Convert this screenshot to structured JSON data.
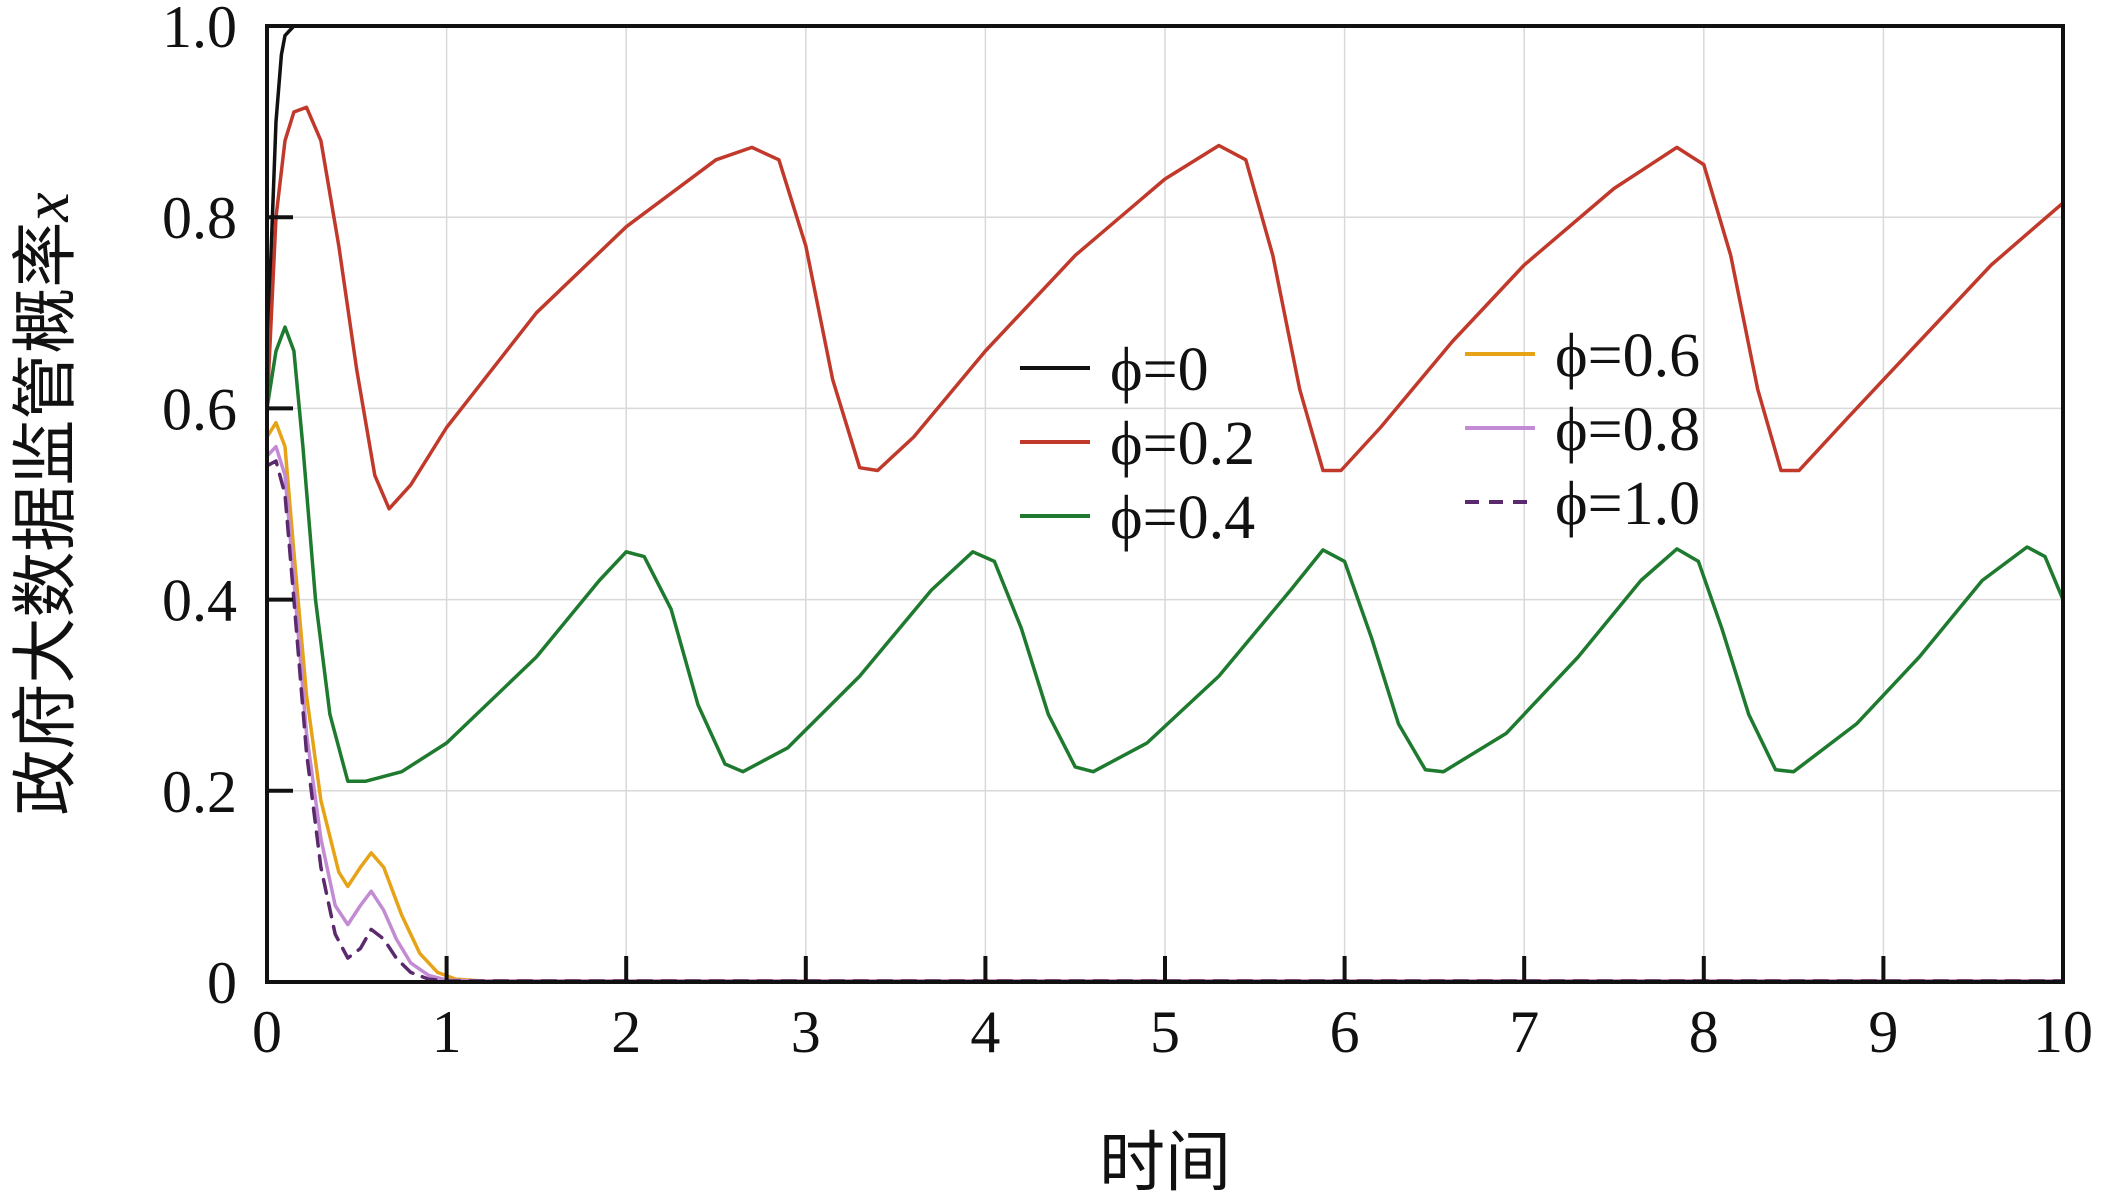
{
  "chart_data": {
    "type": "line",
    "xlabel": "时间",
    "ylabel": "政府大数据监管概率",
    "ylabel_var": "x",
    "xlim": [
      0,
      10
    ],
    "ylim": [
      0,
      1.0
    ],
    "x_ticks": [
      0,
      1,
      2,
      3,
      4,
      5,
      6,
      7,
      8,
      9,
      10
    ],
    "x_tick_labels": [
      "0",
      "1",
      "2",
      "3",
      "4",
      "5",
      "6",
      "7",
      "8",
      "9",
      "10"
    ],
    "y_ticks": [
      0,
      0.2,
      0.4,
      0.6,
      0.8,
      1.0
    ],
    "y_tick_labels": [
      "0",
      "0.2",
      "0.4",
      "0.6",
      "0.8",
      "1.0"
    ],
    "grid": true,
    "legend_placement": "center-right",
    "series": [
      {
        "name": "ϕ=0",
        "color": "#111111",
        "dash": "solid",
        "points": [
          [
            0,
            0.6
          ],
          [
            0.02,
            0.75
          ],
          [
            0.05,
            0.9
          ],
          [
            0.08,
            0.97
          ],
          [
            0.1,
            0.99
          ],
          [
            0.15,
            1.0
          ],
          [
            1.0,
            1.0
          ],
          [
            2,
            1.0
          ],
          [
            3,
            1.0
          ],
          [
            4,
            1.0
          ],
          [
            5,
            1.0
          ],
          [
            6,
            1.0
          ],
          [
            7,
            1.0
          ],
          [
            8,
            1.0
          ],
          [
            9,
            1.0
          ],
          [
            10,
            1.0
          ]
        ]
      },
      {
        "name": "ϕ=0.2",
        "color": "#c0392b",
        "dash": "solid",
        "points": [
          [
            0,
            0.6
          ],
          [
            0.05,
            0.8
          ],
          [
            0.1,
            0.88
          ],
          [
            0.15,
            0.91
          ],
          [
            0.22,
            0.915
          ],
          [
            0.3,
            0.88
          ],
          [
            0.4,
            0.77
          ],
          [
            0.5,
            0.64
          ],
          [
            0.6,
            0.53
          ],
          [
            0.68,
            0.495
          ],
          [
            0.8,
            0.52
          ],
          [
            1.0,
            0.58
          ],
          [
            1.5,
            0.7
          ],
          [
            2.0,
            0.79
          ],
          [
            2.5,
            0.86
          ],
          [
            2.7,
            0.873
          ],
          [
            2.85,
            0.86
          ],
          [
            3.0,
            0.77
          ],
          [
            3.15,
            0.63
          ],
          [
            3.3,
            0.538
          ],
          [
            3.4,
            0.535
          ],
          [
            3.6,
            0.57
          ],
          [
            4.0,
            0.66
          ],
          [
            4.5,
            0.76
          ],
          [
            5.0,
            0.84
          ],
          [
            5.3,
            0.875
          ],
          [
            5.45,
            0.86
          ],
          [
            5.6,
            0.76
          ],
          [
            5.75,
            0.62
          ],
          [
            5.88,
            0.535
          ],
          [
            5.98,
            0.535
          ],
          [
            6.2,
            0.58
          ],
          [
            6.6,
            0.67
          ],
          [
            7.0,
            0.75
          ],
          [
            7.5,
            0.83
          ],
          [
            7.85,
            0.873
          ],
          [
            8.0,
            0.855
          ],
          [
            8.15,
            0.76
          ],
          [
            8.3,
            0.62
          ],
          [
            8.43,
            0.535
          ],
          [
            8.53,
            0.535
          ],
          [
            8.8,
            0.59
          ],
          [
            9.2,
            0.67
          ],
          [
            9.6,
            0.75
          ],
          [
            10.0,
            0.815
          ]
        ]
      },
      {
        "name": "ϕ=0.4",
        "color": "#1e7a2e",
        "dash": "solid",
        "points": [
          [
            0,
            0.6
          ],
          [
            0.05,
            0.66
          ],
          [
            0.1,
            0.685
          ],
          [
            0.15,
            0.66
          ],
          [
            0.2,
            0.56
          ],
          [
            0.27,
            0.4
          ],
          [
            0.35,
            0.28
          ],
          [
            0.45,
            0.21
          ],
          [
            0.55,
            0.21
          ],
          [
            0.75,
            0.22
          ],
          [
            1.0,
            0.25
          ],
          [
            1.5,
            0.34
          ],
          [
            1.85,
            0.42
          ],
          [
            2.0,
            0.45
          ],
          [
            2.1,
            0.445
          ],
          [
            2.25,
            0.39
          ],
          [
            2.4,
            0.29
          ],
          [
            2.55,
            0.228
          ],
          [
            2.65,
            0.22
          ],
          [
            2.9,
            0.245
          ],
          [
            3.3,
            0.32
          ],
          [
            3.7,
            0.41
          ],
          [
            3.93,
            0.45
          ],
          [
            4.05,
            0.44
          ],
          [
            4.2,
            0.37
          ],
          [
            4.35,
            0.28
          ],
          [
            4.5,
            0.225
          ],
          [
            4.6,
            0.22
          ],
          [
            4.9,
            0.25
          ],
          [
            5.3,
            0.32
          ],
          [
            5.7,
            0.41
          ],
          [
            5.88,
            0.452
          ],
          [
            6.0,
            0.44
          ],
          [
            6.15,
            0.36
          ],
          [
            6.3,
            0.27
          ],
          [
            6.45,
            0.222
          ],
          [
            6.55,
            0.22
          ],
          [
            6.9,
            0.26
          ],
          [
            7.3,
            0.34
          ],
          [
            7.65,
            0.42
          ],
          [
            7.85,
            0.453
          ],
          [
            7.97,
            0.44
          ],
          [
            8.1,
            0.37
          ],
          [
            8.25,
            0.28
          ],
          [
            8.4,
            0.222
          ],
          [
            8.5,
            0.22
          ],
          [
            8.85,
            0.27
          ],
          [
            9.2,
            0.34
          ],
          [
            9.55,
            0.42
          ],
          [
            9.8,
            0.455
          ],
          [
            9.9,
            0.445
          ],
          [
            10.0,
            0.4
          ]
        ]
      },
      {
        "name": "ϕ=0.6",
        "color": "#e6a317",
        "dash": "solid",
        "points": [
          [
            0,
            0.57
          ],
          [
            0.05,
            0.585
          ],
          [
            0.1,
            0.56
          ],
          [
            0.15,
            0.45
          ],
          [
            0.22,
            0.3
          ],
          [
            0.3,
            0.19
          ],
          [
            0.4,
            0.115
          ],
          [
            0.45,
            0.1
          ],
          [
            0.52,
            0.12
          ],
          [
            0.58,
            0.135
          ],
          [
            0.65,
            0.12
          ],
          [
            0.75,
            0.07
          ],
          [
            0.85,
            0.03
          ],
          [
            0.95,
            0.01
          ],
          [
            1.05,
            0.003
          ],
          [
            1.2,
            0.001
          ],
          [
            2,
            0.001
          ],
          [
            4,
            0.001
          ],
          [
            6,
            0.001
          ],
          [
            8,
            0.001
          ],
          [
            10,
            0.001
          ]
        ]
      },
      {
        "name": "ϕ=0.8",
        "color": "#c38bd3",
        "dash": "solid",
        "points": [
          [
            0,
            0.55
          ],
          [
            0.05,
            0.56
          ],
          [
            0.1,
            0.53
          ],
          [
            0.15,
            0.42
          ],
          [
            0.22,
            0.26
          ],
          [
            0.3,
            0.15
          ],
          [
            0.38,
            0.08
          ],
          [
            0.45,
            0.06
          ],
          [
            0.52,
            0.08
          ],
          [
            0.58,
            0.095
          ],
          [
            0.65,
            0.075
          ],
          [
            0.72,
            0.045
          ],
          [
            0.8,
            0.02
          ],
          [
            0.9,
            0.007
          ],
          [
            1.0,
            0.002
          ],
          [
            1.2,
            0.001
          ],
          [
            2,
            0.001
          ],
          [
            4,
            0.001
          ],
          [
            6,
            0.001
          ],
          [
            8,
            0.001
          ],
          [
            10,
            0.001
          ]
        ]
      },
      {
        "name": "ϕ=1.0",
        "color": "#5b2a6e",
        "dash": "dashed",
        "points": [
          [
            0,
            0.54
          ],
          [
            0.05,
            0.545
          ],
          [
            0.1,
            0.51
          ],
          [
            0.15,
            0.4
          ],
          [
            0.22,
            0.24
          ],
          [
            0.3,
            0.12
          ],
          [
            0.38,
            0.05
          ],
          [
            0.45,
            0.025
          ],
          [
            0.52,
            0.035
          ],
          [
            0.58,
            0.055
          ],
          [
            0.65,
            0.045
          ],
          [
            0.72,
            0.025
          ],
          [
            0.8,
            0.01
          ],
          [
            0.9,
            0.003
          ],
          [
            1.0,
            0.001
          ],
          [
            2,
            0.001
          ],
          [
            4,
            0.001
          ],
          [
            6,
            0.001
          ],
          [
            8,
            0.001
          ],
          [
            10,
            0.001
          ]
        ]
      }
    ]
  }
}
